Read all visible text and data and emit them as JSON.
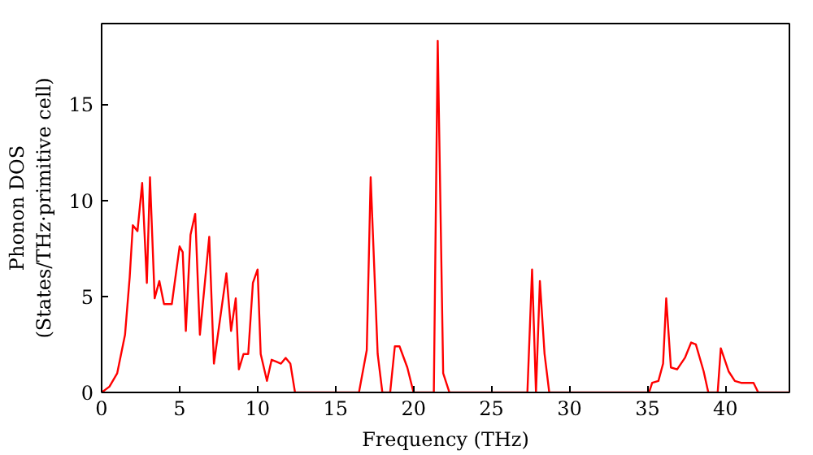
{
  "chart_data": {
    "type": "line",
    "xlabel": "Frequency (THz)",
    "ylabel": "Phonon DOS\n(States/THz·primitive cell)",
    "xlim": [
      0,
      44.1
    ],
    "ylim": [
      0,
      19.2
    ],
    "xticks": [
      0,
      5,
      10,
      15,
      20,
      25,
      30,
      35,
      40
    ],
    "yticks": [
      0,
      5,
      10,
      15
    ],
    "grid": false,
    "series": [
      {
        "color": "#ff0000",
        "x": [
          0,
          0.5,
          1,
          1.5,
          1.8,
          2,
          2.3,
          2.6,
          2.9,
          3.1,
          3.4,
          3.7,
          4,
          4.5,
          5,
          5.2,
          5.4,
          5.7,
          6,
          6.3,
          6.9,
          7.2,
          8,
          8.3,
          8.6,
          8.8,
          9.1,
          9.4,
          9.7,
          10,
          10.2,
          10.6,
          10.9,
          11.2,
          11.5,
          11.8,
          12.1,
          12.4,
          16.5,
          17,
          17.25,
          17.7,
          18,
          18.5,
          18.8,
          19.1,
          19.6,
          20,
          21.3,
          21.55,
          21.9,
          22.3,
          27.3,
          27.6,
          27.85,
          28.1,
          28.4,
          28.7,
          35.1,
          35.3,
          35.7,
          36,
          36.2,
          36.5,
          36.9,
          37.4,
          37.8,
          38.1,
          38.6,
          38.9,
          39.5,
          39.7,
          40.2,
          40.6,
          41,
          41.8,
          42.1,
          44.1
        ],
        "values": [
          0,
          0.3,
          1,
          3,
          6,
          8.7,
          8.4,
          10.9,
          5.7,
          11.2,
          4.9,
          5.8,
          4.6,
          4.6,
          7.6,
          7.3,
          3.2,
          8.2,
          9.3,
          3.0,
          8.1,
          1.5,
          6.2,
          3.2,
          4.9,
          1.2,
          2.0,
          2.0,
          5.7,
          6.4,
          2.0,
          0.6,
          1.7,
          1.6,
          1.5,
          1.8,
          1.5,
          0,
          0,
          2.2,
          11.2,
          2,
          0,
          0,
          2.4,
          2.4,
          1.3,
          0,
          0,
          18.3,
          1,
          0,
          0,
          6.4,
          0,
          5.8,
          2,
          0,
          0,
          0.5,
          0.6,
          1.5,
          4.9,
          1.3,
          1.2,
          1.8,
          2.6,
          2.5,
          1.1,
          0,
          0,
          2.3,
          1.1,
          0.6,
          0.5,
          0.5,
          0,
          0
        ]
      }
    ]
  }
}
